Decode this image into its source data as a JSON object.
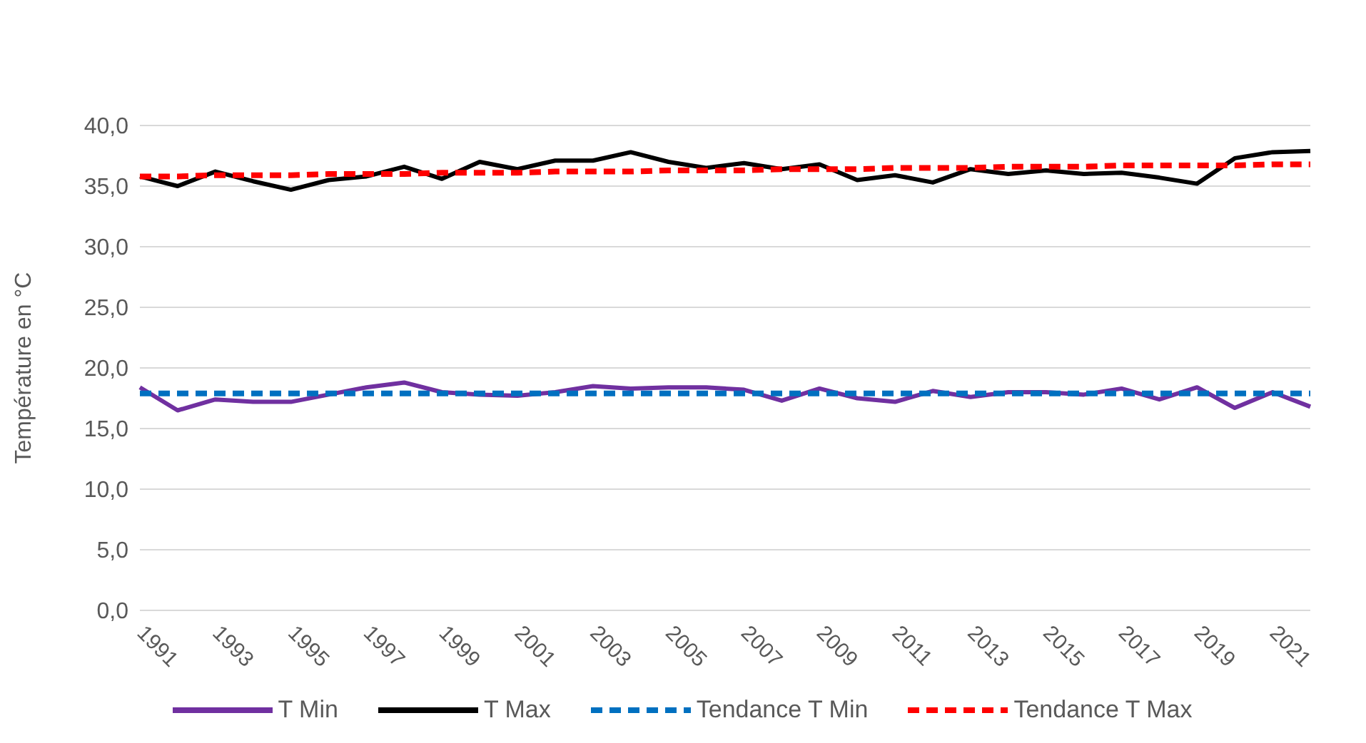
{
  "chart_data": {
    "type": "line",
    "ylabel": "Température en °C",
    "x": [
      1991,
      1992,
      1993,
      1994,
      1995,
      1996,
      1997,
      1998,
      1999,
      2000,
      2001,
      2002,
      2003,
      2004,
      2005,
      2006,
      2007,
      2008,
      2009,
      2010,
      2011,
      2012,
      2013,
      2014,
      2015,
      2016,
      2017,
      2018,
      2019,
      2020,
      2021,
      2022
    ],
    "series": [
      {
        "name": "T Min",
        "color": "#7030a0",
        "values": [
          18.4,
          16.5,
          17.4,
          17.2,
          17.2,
          17.8,
          18.4,
          18.8,
          18.0,
          17.8,
          17.7,
          18.0,
          18.5,
          18.3,
          18.4,
          18.4,
          18.2,
          17.3,
          18.3,
          17.5,
          17.2,
          18.1,
          17.6,
          18.0,
          18.0,
          17.8,
          18.3,
          17.4,
          18.4,
          16.7,
          18.0,
          16.8
        ]
      },
      {
        "name": "T Max",
        "color": "#000000",
        "values": [
          35.8,
          35.0,
          36.2,
          35.4,
          34.7,
          35.5,
          35.8,
          36.6,
          35.6,
          37.0,
          36.4,
          37.1,
          37.1,
          37.8,
          37.0,
          36.5,
          36.9,
          36.4,
          36.8,
          35.5,
          35.9,
          35.3,
          36.4,
          36.0,
          36.3,
          36.0,
          36.1,
          35.7,
          35.2,
          37.3,
          37.8,
          37.9
        ]
      },
      {
        "name": "Tendance T Min",
        "color": "#0070c0",
        "line_style": "dashed",
        "values": [
          17.9,
          17.9,
          17.9,
          17.9,
          17.9,
          17.9,
          17.9,
          17.9,
          17.9,
          17.9,
          17.9,
          17.9,
          17.9,
          17.9,
          17.9,
          17.9,
          17.9,
          17.9,
          17.9,
          17.9,
          17.9,
          17.9,
          17.9,
          17.9,
          17.9,
          17.9,
          17.9,
          17.9,
          17.9,
          17.9,
          17.9,
          17.9
        ]
      },
      {
        "name": "Tendance T Max",
        "color": "#ff0000",
        "line_style": "dashed",
        "values": [
          35.8,
          35.8,
          35.9,
          35.9,
          35.9,
          36.0,
          36.0,
          36.0,
          36.1,
          36.1,
          36.1,
          36.2,
          36.2,
          36.2,
          36.3,
          36.3,
          36.3,
          36.4,
          36.4,
          36.4,
          36.5,
          36.5,
          36.5,
          36.6,
          36.6,
          36.6,
          36.7,
          36.7,
          36.7,
          36.7,
          36.8,
          36.8
        ]
      }
    ],
    "xlim": [
      1991,
      2022
    ],
    "xticks": [
      1991,
      1993,
      1995,
      1997,
      1999,
      2001,
      2003,
      2005,
      2007,
      2009,
      2011,
      2013,
      2015,
      2017,
      2019,
      2021
    ],
    "ylim": [
      0,
      40
    ],
    "yticks": [
      {
        "value": 0,
        "label": "0,0"
      },
      {
        "value": 5,
        "label": "5,0"
      },
      {
        "value": 10,
        "label": "10,0"
      },
      {
        "value": 15,
        "label": "15,0"
      },
      {
        "value": 20,
        "label": "20,0"
      },
      {
        "value": 25,
        "label": "25,0"
      },
      {
        "value": 30,
        "label": "30,0"
      },
      {
        "value": 35,
        "label": "35,0"
      },
      {
        "value": 40,
        "label": "40,0"
      }
    ],
    "grid": "y",
    "legend": "bottom",
    "marker": "none",
    "line_style": "solid"
  }
}
